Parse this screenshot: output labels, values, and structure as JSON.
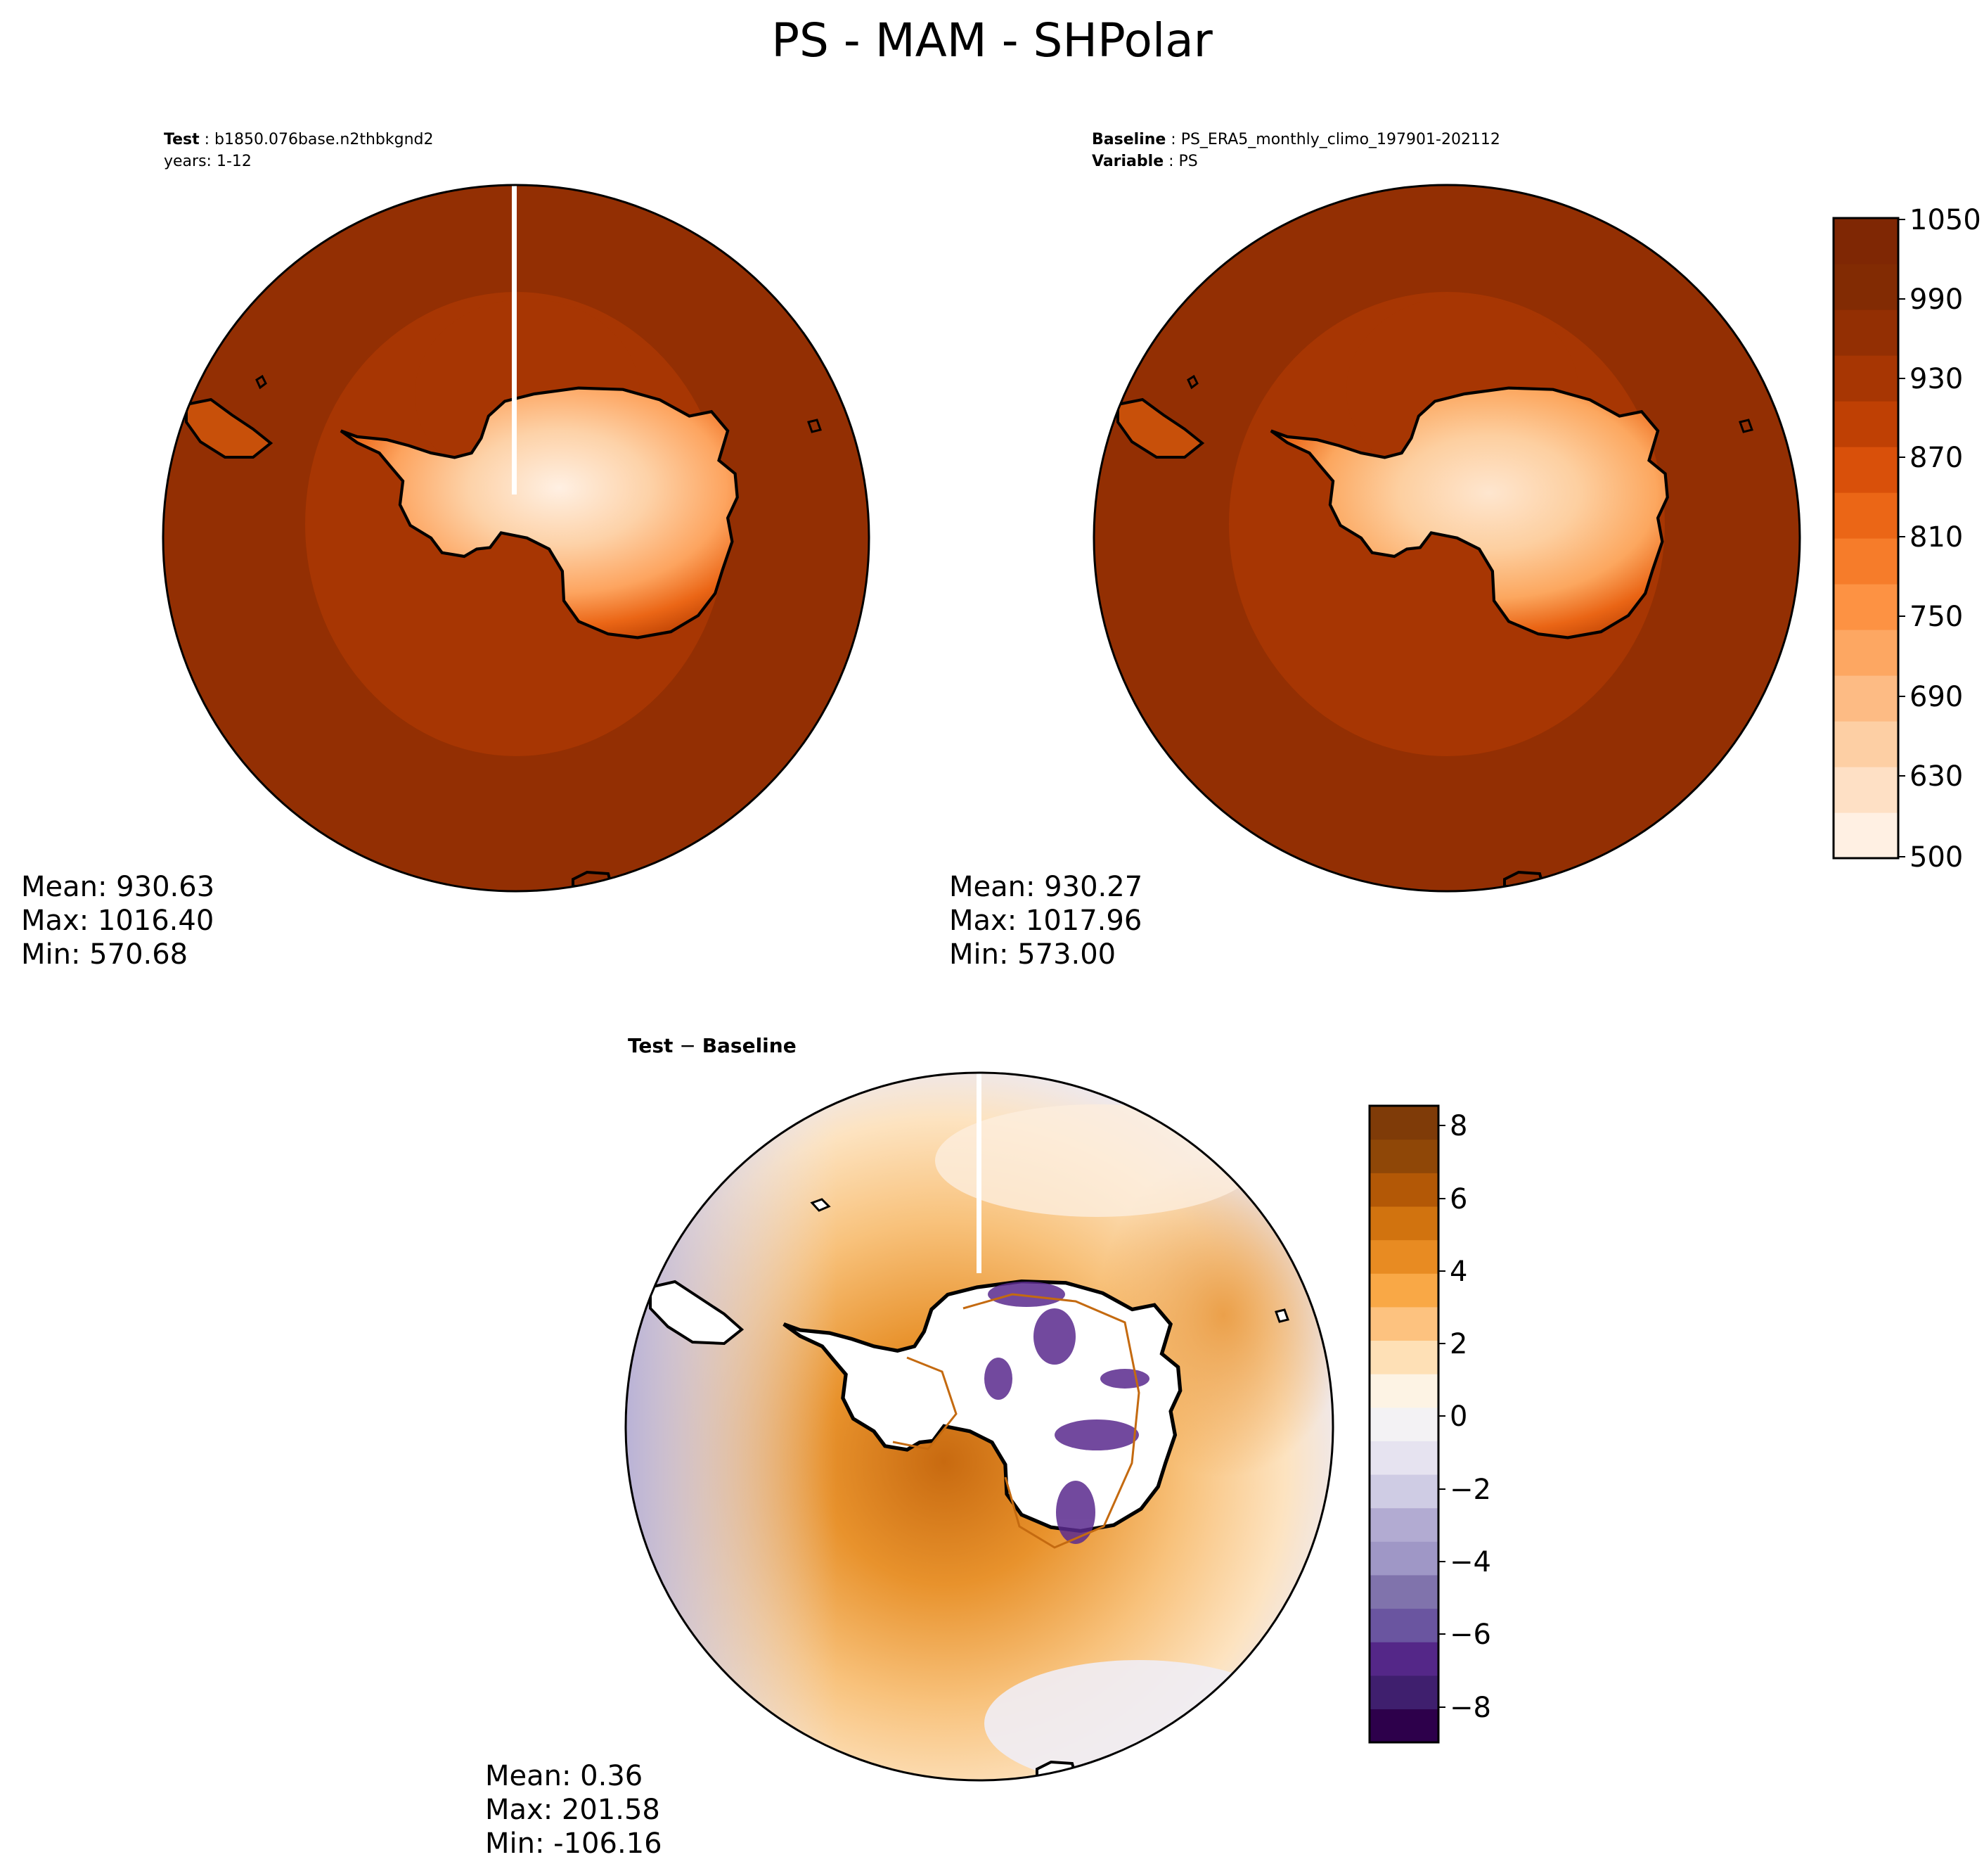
{
  "figure": {
    "title": "PS - MAM - SHPolar"
  },
  "panels": {
    "test": {
      "label_bold": "Test",
      "label_value": "b1850.076base.n2thbkgnd2",
      "line2": "years: 1-12",
      "stats": {
        "mean": "Mean: 930.63",
        "max": "Max: 1016.40",
        "min": "Min: 570.68"
      }
    },
    "baseline": {
      "label_bold": "Baseline",
      "label_value": "PS_ERA5_monthly_climo_197901-202112",
      "line2_bold": "Variable",
      "line2_value": "PS",
      "stats": {
        "mean": "Mean: 930.27",
        "max": "Max: 1017.96",
        "min": "Min: 573.00"
      }
    },
    "diff": {
      "title_left": "Test",
      "title_op": " − ",
      "title_right": "Baseline",
      "stats": {
        "mean": "Mean:  0.36",
        "max": "Max: 201.58",
        "min": "Min: -106.16"
      }
    }
  },
  "colorbars": {
    "field": {
      "colormap": "Oranges",
      "range": [
        500,
        1050
      ],
      "ticks": [
        "1050",
        "990",
        "930",
        "870",
        "810",
        "750",
        "690",
        "630",
        "500"
      ],
      "colors": [
        "#fff0e3",
        "#fee0c5",
        "#fdcfa4",
        "#fdbb84",
        "#fda762",
        "#fd9243",
        "#f67c2a",
        "#eb6616",
        "#d9500a",
        "#bf4004",
        "#a73603",
        "#932f03",
        "#822b03",
        "#7f2704"
      ]
    },
    "diff": {
      "colormap": "PuOr_r",
      "range": [
        -9,
        8.5
      ],
      "ticks": [
        "8",
        "6",
        "4",
        "2",
        "0",
        "−2",
        "−4",
        "−6",
        "−8"
      ],
      "colors": [
        "#2d004b",
        "#3f1f6e",
        "#542788",
        "#6a55a0",
        "#8073ac",
        "#9f97c6",
        "#b2abd2",
        "#cfcce4",
        "#e6e3f0",
        "#f3f2f4",
        "#fdf3e4",
        "#fee0b6",
        "#fdc27f",
        "#f9a846",
        "#e88b22",
        "#d1730f",
        "#b35806",
        "#8f4707",
        "#7f3b08"
      ]
    }
  },
  "map_colors": {
    "ocean_field": "#932f03",
    "ocean_field_inner": "#a73603",
    "coastline": "#000000",
    "diff_positive": "#f7b765",
    "diff_strong": "#d87a1c",
    "diff_negative": "#cdc8e2",
    "diff_land_neg": "#55288a"
  }
}
